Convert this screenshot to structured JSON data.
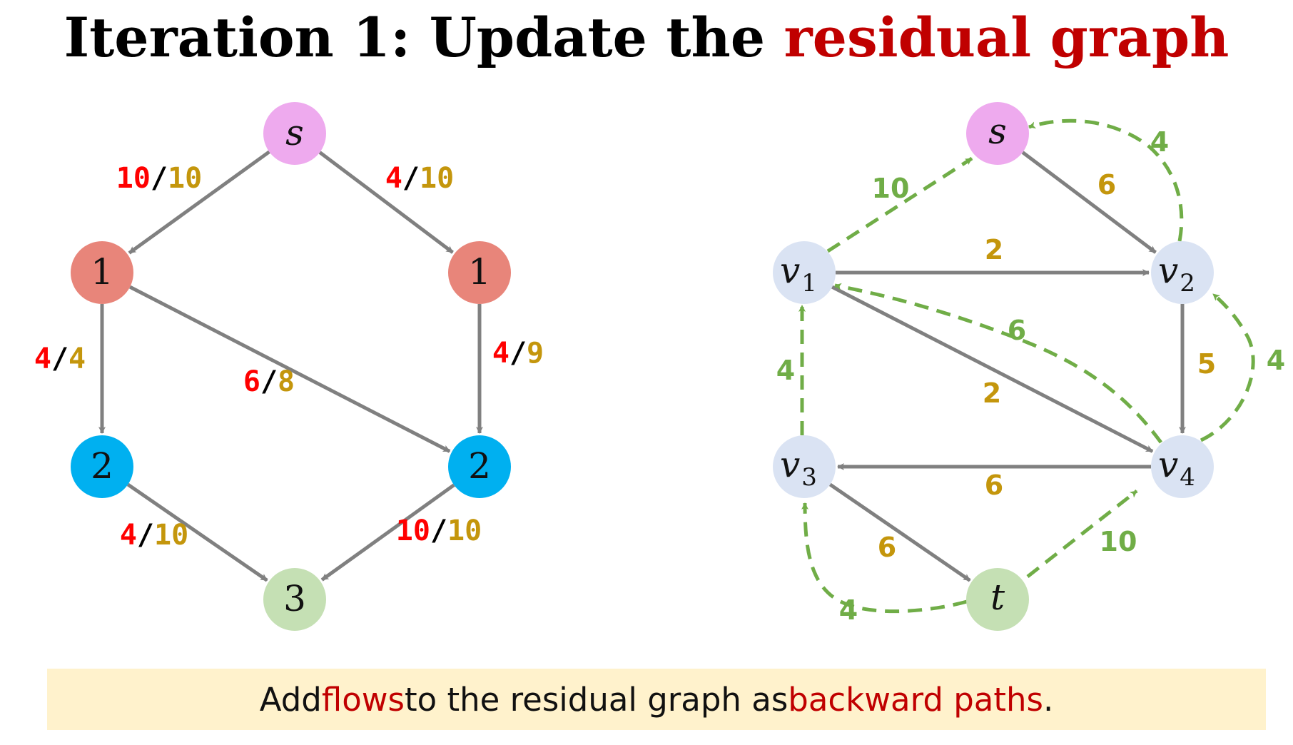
{
  "title": {
    "prefix": "Iteration 1: Update the ",
    "highlight": "residual graph"
  },
  "banner": {
    "part1": "Add ",
    "hl1": "flows",
    "part2": " to the residual graph as ",
    "hl2": "backward paths",
    "part3": "."
  },
  "colors": {
    "title_accent": "#c00000",
    "flow": "#ff0000",
    "capacity": "#c4960c",
    "residual_forward_edge": "#808080",
    "residual_backward_edge": "#70ad47",
    "node_source": "#eeaaee",
    "node_level1": "#e8857a",
    "node_level2": "#00b0f0",
    "node_level3": "#c5e0b4",
    "node_residual": "#dae3f3",
    "node_sink": "#c5e0b4",
    "banner_background": "#fff2cc"
  },
  "level_graph": {
    "nodes": [
      {
        "id": "s",
        "label": "s",
        "italic": true,
        "color": "#eeaaee"
      },
      {
        "id": "v1",
        "label": "1",
        "color": "#e8857a"
      },
      {
        "id": "v2",
        "label": "1",
        "color": "#e8857a"
      },
      {
        "id": "v3",
        "label": "2",
        "color": "#00b0f0"
      },
      {
        "id": "v4",
        "label": "2",
        "color": "#00b0f0"
      },
      {
        "id": "t",
        "label": "3",
        "color": "#c5e0b4"
      }
    ],
    "edges": [
      {
        "from": "s",
        "to": "v1",
        "flow": "10",
        "capacity": "10"
      },
      {
        "from": "s",
        "to": "v2",
        "flow": "4",
        "capacity": "10"
      },
      {
        "from": "v1",
        "to": "v3",
        "flow": "4",
        "capacity": "4"
      },
      {
        "from": "v1",
        "to": "v4",
        "flow": "6",
        "capacity": "8"
      },
      {
        "from": "v2",
        "to": "v4",
        "flow": "4",
        "capacity": "9"
      },
      {
        "from": "v3",
        "to": "t",
        "flow": "4",
        "capacity": "10"
      },
      {
        "from": "v4",
        "to": "t",
        "flow": "10",
        "capacity": "10"
      }
    ]
  },
  "residual_graph": {
    "nodes": [
      {
        "id": "s",
        "label": "s",
        "sub": "",
        "color": "#eeaaee"
      },
      {
        "id": "v1",
        "label": "v",
        "sub": "1",
        "color": "#dae3f3"
      },
      {
        "id": "v2",
        "label": "v",
        "sub": "2",
        "color": "#dae3f3"
      },
      {
        "id": "v3",
        "label": "v",
        "sub": "3",
        "color": "#dae3f3"
      },
      {
        "id": "v4",
        "label": "v",
        "sub": "4",
        "color": "#dae3f3"
      },
      {
        "id": "t",
        "label": "t",
        "sub": "",
        "color": "#c5e0b4"
      }
    ],
    "forward_edges": [
      {
        "from": "s",
        "to": "v2",
        "value": "6"
      },
      {
        "from": "v1",
        "to": "v2",
        "value": "2"
      },
      {
        "from": "v1",
        "to": "v4",
        "value": "2"
      },
      {
        "from": "v2",
        "to": "v4",
        "value": "5"
      },
      {
        "from": "v4",
        "to": "v3",
        "value": "6"
      },
      {
        "from": "v3",
        "to": "t",
        "value": "6"
      }
    ],
    "backward_edges": [
      {
        "from": "v1",
        "to": "s",
        "value": "10"
      },
      {
        "from": "v2",
        "to": "s",
        "value": "4"
      },
      {
        "from": "v4",
        "to": "v1",
        "value": "6"
      },
      {
        "from": "v3",
        "to": "v1",
        "value": "4"
      },
      {
        "from": "v4",
        "to": "v2",
        "value": "4"
      },
      {
        "from": "t",
        "to": "v4",
        "value": "10"
      },
      {
        "from": "t",
        "to": "v3",
        "value": "4"
      }
    ]
  }
}
